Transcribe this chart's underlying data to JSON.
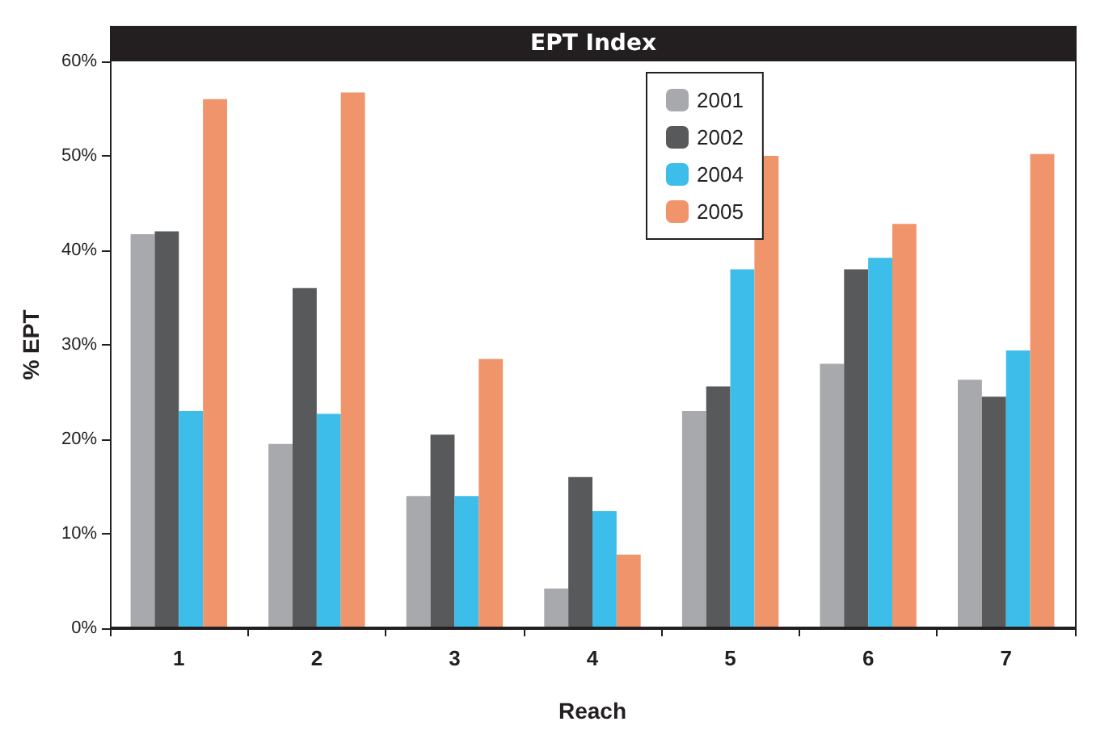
{
  "chart_data": {
    "type": "bar",
    "title": "EPT Index",
    "xlabel": "Reach",
    "ylabel": "% EPT",
    "categories": [
      "1",
      "2",
      "3",
      "4",
      "5",
      "6",
      "7"
    ],
    "series": [
      {
        "name": "2001",
        "color": "#a7a9ac",
        "values": [
          41.7,
          19.5,
          14,
          4.2,
          23,
          28,
          26.3
        ]
      },
      {
        "name": "2002",
        "color": "#58595b",
        "values": [
          42,
          36,
          20.5,
          16,
          25.6,
          38,
          24.5
        ]
      },
      {
        "name": "2004",
        "color": "#3dbde9",
        "values": [
          23,
          22.7,
          14,
          12.4,
          38,
          39.2,
          29.4
        ]
      },
      {
        "name": "2005",
        "color": "#f0956b",
        "values": [
          56,
          56.7,
          28.5,
          7.8,
          50,
          42.8,
          50.2
        ]
      }
    ],
    "ylim": [
      0,
      60
    ],
    "yticks": [
      {
        "value": 0,
        "label": "0%"
      },
      {
        "value": 10,
        "label": "10%"
      },
      {
        "value": 20,
        "label": "20%"
      },
      {
        "value": 30,
        "label": "30%"
      },
      {
        "value": 40,
        "label": "40%"
      },
      {
        "value": 50,
        "label": "50%"
      },
      {
        "value": 60,
        "label": "60%"
      }
    ],
    "grid": false,
    "legend": "top"
  }
}
